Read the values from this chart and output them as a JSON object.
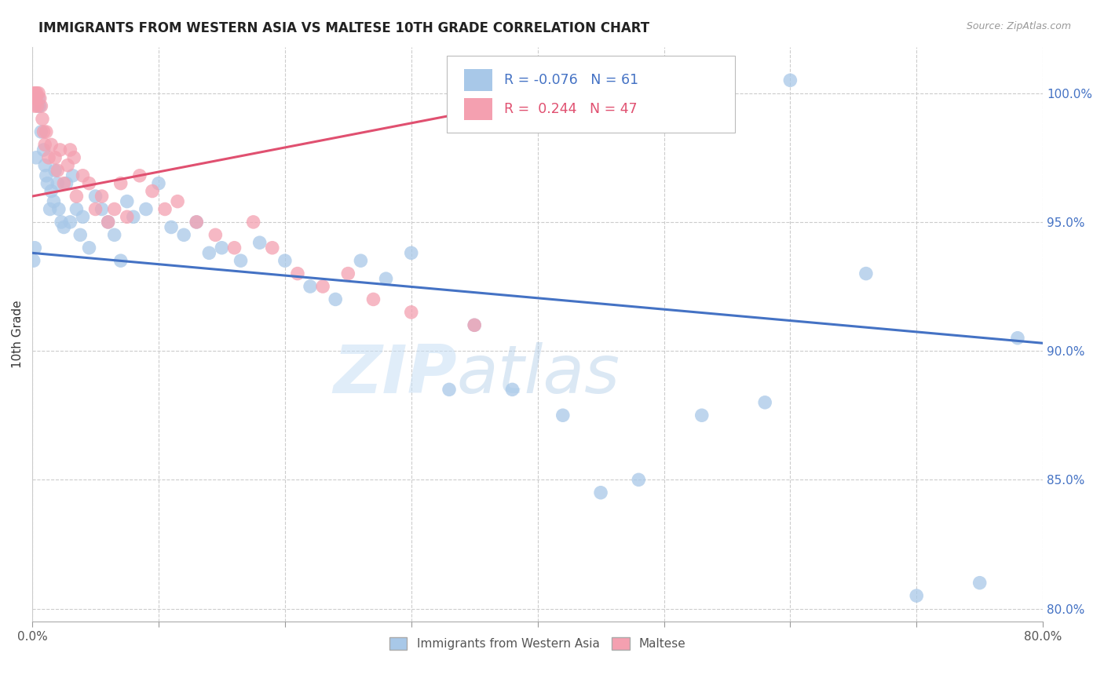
{
  "title": "IMMIGRANTS FROM WESTERN ASIA VS MALTESE 10TH GRADE CORRELATION CHART",
  "source": "Source: ZipAtlas.com",
  "ylabel": "10th Grade",
  "xmin": 0.0,
  "xmax": 80.0,
  "ymin": 79.5,
  "ymax": 101.8,
  "yticks": [
    80.0,
    85.0,
    90.0,
    95.0,
    100.0
  ],
  "ytick_labels": [
    "80.0%",
    "85.0%",
    "90.0%",
    "95.0%",
    "100.0%"
  ],
  "xticks": [
    0.0,
    10.0,
    20.0,
    30.0,
    40.0,
    50.0,
    60.0,
    70.0,
    80.0
  ],
  "blue_R": -0.076,
  "blue_N": 61,
  "pink_R": 0.244,
  "pink_N": 47,
  "blue_color": "#a8c8e8",
  "pink_color": "#f4a0b0",
  "blue_line_color": "#4472c4",
  "pink_line_color": "#e05070",
  "watermark_zip": "ZIP",
  "watermark_atlas": "atlas",
  "legend_blue_label": "Immigrants from Western Asia",
  "legend_pink_label": "Maltese",
  "blue_trend_x0": 0.0,
  "blue_trend_x1": 80.0,
  "blue_trend_y0": 93.8,
  "blue_trend_y1": 90.3,
  "pink_trend_x0": 0.0,
  "pink_trend_x1": 37.0,
  "pink_trend_y0": 96.0,
  "pink_trend_y1": 99.5,
  "blue_x": [
    0.1,
    0.2,
    0.3,
    0.5,
    0.5,
    0.6,
    0.7,
    0.9,
    1.0,
    1.1,
    1.2,
    1.4,
    1.5,
    1.7,
    1.8,
    2.0,
    2.1,
    2.3,
    2.5,
    2.7,
    3.0,
    3.2,
    3.5,
    3.8,
    4.0,
    4.5,
    5.0,
    5.5,
    6.0,
    6.5,
    7.0,
    7.5,
    8.0,
    9.0,
    10.0,
    11.0,
    12.0,
    13.0,
    14.0,
    15.0,
    16.5,
    18.0,
    20.0,
    22.0,
    24.0,
    26.0,
    28.0,
    30.0,
    33.0,
    35.0,
    38.0,
    42.0,
    45.0,
    48.0,
    53.0,
    58.0,
    60.0,
    66.0,
    70.0,
    75.0,
    78.0
  ],
  "blue_y": [
    93.5,
    94.0,
    97.5,
    99.5,
    99.8,
    99.5,
    98.5,
    97.8,
    97.2,
    96.8,
    96.5,
    95.5,
    96.2,
    95.8,
    97.0,
    96.5,
    95.5,
    95.0,
    94.8,
    96.5,
    95.0,
    96.8,
    95.5,
    94.5,
    95.2,
    94.0,
    96.0,
    95.5,
    95.0,
    94.5,
    93.5,
    95.8,
    95.2,
    95.5,
    96.5,
    94.8,
    94.5,
    95.0,
    93.8,
    94.0,
    93.5,
    94.2,
    93.5,
    92.5,
    92.0,
    93.5,
    92.8,
    93.8,
    88.5,
    91.0,
    88.5,
    87.5,
    84.5,
    85.0,
    87.5,
    88.0,
    100.5,
    93.0,
    80.5,
    81.0,
    90.5
  ],
  "pink_x": [
    0.1,
    0.15,
    0.2,
    0.25,
    0.3,
    0.35,
    0.4,
    0.5,
    0.6,
    0.7,
    0.8,
    0.9,
    1.0,
    1.1,
    1.3,
    1.5,
    1.8,
    2.0,
    2.2,
    2.5,
    2.8,
    3.0,
    3.3,
    3.5,
    4.0,
    4.5,
    5.0,
    5.5,
    6.0,
    6.5,
    7.0,
    7.5,
    8.5,
    9.5,
    10.5,
    11.5,
    13.0,
    14.5,
    16.0,
    17.5,
    19.0,
    21.0,
    23.0,
    25.0,
    27.0,
    30.0,
    35.0
  ],
  "pink_y": [
    100.0,
    99.8,
    99.5,
    100.0,
    99.8,
    100.0,
    99.5,
    100.0,
    99.8,
    99.5,
    99.0,
    98.5,
    98.0,
    98.5,
    97.5,
    98.0,
    97.5,
    97.0,
    97.8,
    96.5,
    97.2,
    97.8,
    97.5,
    96.0,
    96.8,
    96.5,
    95.5,
    96.0,
    95.0,
    95.5,
    96.5,
    95.2,
    96.8,
    96.2,
    95.5,
    95.8,
    95.0,
    94.5,
    94.0,
    95.0,
    94.0,
    93.0,
    92.5,
    93.0,
    92.0,
    91.5,
    91.0
  ]
}
